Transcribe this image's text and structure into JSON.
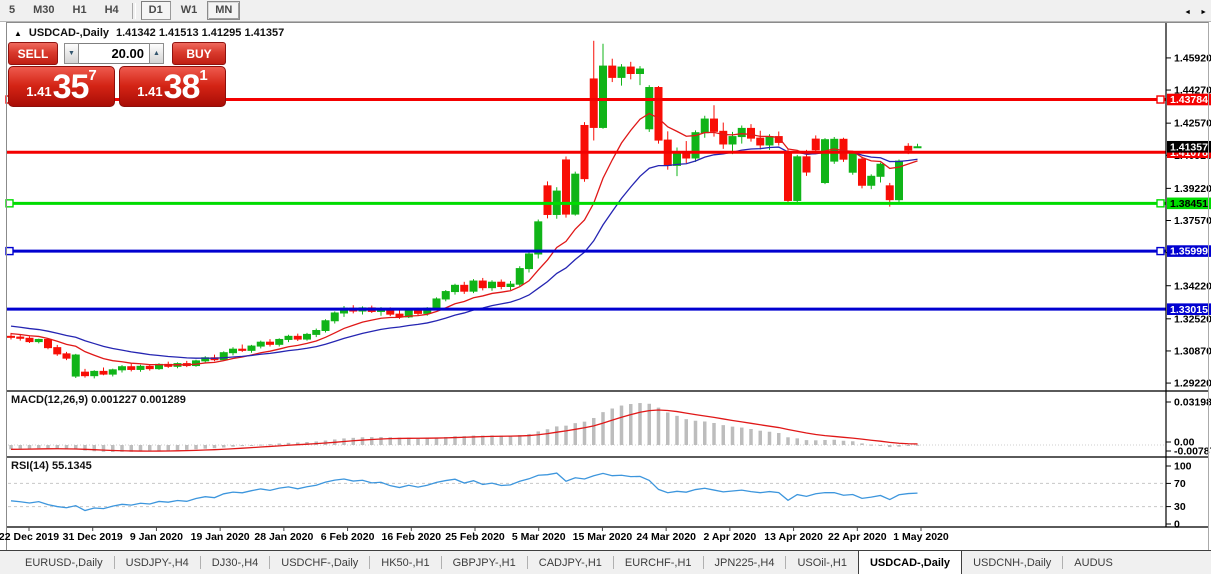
{
  "toolbar": {
    "periods": [
      "5",
      "M30",
      "H1",
      "H4",
      "D1",
      "W1",
      "MN"
    ],
    "pressed": "D1",
    "raised": "MN"
  },
  "window": {
    "title": "USDCAD-,Daily",
    "ohlc_text": "1.41342 1.41513 1.41295 1.41357"
  },
  "trade": {
    "sell_label": "SELL",
    "buy_label": "BUY",
    "volume": "20.00",
    "sell_price_small": "1.41",
    "sell_price_big": "35",
    "sell_price_sup": "7",
    "buy_price_small": "1.41",
    "buy_price_big": "38",
    "buy_price_sup": "1"
  },
  "icons": {
    "collapse_icon": "▲",
    "spin_down_icon": "▼",
    "spin_up_icon": "▲",
    "tabs_scroll_left_icon": "◄",
    "tabs_scroll_right_icon": "►"
  },
  "colors": {
    "bull": "#10b418",
    "bear": "#f80e06",
    "ma_fast": "#e01818",
    "ma_slow": "#2525b2",
    "level_red": "#f40000",
    "level_green": "#00dc00",
    "level_blue": "#0101d0",
    "macd_hist": "#bdbdbd",
    "macd_signal": "#e01818",
    "rsi_line": "#3d96dd",
    "grid_dash": "#c8c8c8",
    "axis_line": "#000000"
  },
  "chart_data": {
    "type": "candlestick",
    "symbol": "USDCAD-",
    "timeframe": "Daily",
    "current": {
      "open": 1.41342,
      "high": 1.41513,
      "low": 1.41295,
      "close": 1.41357
    },
    "x_labels": [
      "22 Dec 2019",
      "31 Dec 2019",
      "9 Jan 2020",
      "19 Jan 2020",
      "28 Jan 2020",
      "6 Feb 2020",
      "16 Feb 2020",
      "25 Feb 2020",
      "5 Mar 2020",
      "15 Mar 2020",
      "24 Mar 2020",
      "2 Apr 2020",
      "13 Apr 2020",
      "22 Apr 2020",
      "1 May 2020"
    ],
    "y_axis": {
      "tick_labels": [
        "1.45920",
        "1.44270",
        "1.42570",
        "1.40920",
        "1.39220",
        "1.37570",
        "1.35920",
        "1.34220",
        "1.32520",
        "1.30870",
        "1.29220"
      ],
      "top_price": 1.472,
      "bottom_price": 1.2887
    },
    "current_price_badge": {
      "label": "1.41357",
      "price": 1.41357,
      "bg": "#000000",
      "fg": "#ffffff"
    },
    "levels": [
      {
        "label": "1.43784",
        "price": 1.43784,
        "color": "#f40000",
        "fg": "#ffffff",
        "handles": [
          "left",
          "right"
        ]
      },
      {
        "label": "1.41078",
        "price": 1.41078,
        "color": "#f40000",
        "fg": "#ffffff",
        "handles": []
      },
      {
        "label": "1.38451",
        "price": 1.38451,
        "color": "#00dc00",
        "fg": "#000000",
        "handles": [
          "left",
          "right"
        ]
      },
      {
        "label": "1.35999",
        "price": 1.35999,
        "color": "#0101d0",
        "fg": "#ffffff",
        "handles": [
          "left",
          "right"
        ]
      },
      {
        "label": "1.33015",
        "price": 1.33015,
        "color": "#0101d0",
        "fg": "#ffffff",
        "handles": []
      }
    ],
    "candles": [
      [
        1.3162,
        1.318,
        1.3146,
        1.3158
      ],
      [
        1.3158,
        1.317,
        1.314,
        1.3152
      ],
      [
        1.3152,
        1.3161,
        1.3128,
        1.3135
      ],
      [
        1.3135,
        1.315,
        1.3126,
        1.3146
      ],
      [
        1.3146,
        1.3152,
        1.3096,
        1.3104
      ],
      [
        1.3104,
        1.3118,
        1.3062,
        1.3072
      ],
      [
        1.3072,
        1.3082,
        1.304,
        1.305
      ],
      [
        1.2958,
        1.3072,
        1.2948,
        1.3066
      ],
      [
        1.2978,
        1.2995,
        1.295,
        1.296
      ],
      [
        1.296,
        1.2988,
        1.2946,
        1.2982
      ],
      [
        1.2982,
        1.3002,
        1.2962,
        1.2968
      ],
      [
        1.2968,
        1.2996,
        1.2956,
        1.299
      ],
      [
        1.299,
        1.3014,
        1.2976,
        1.3006
      ],
      [
        1.3006,
        1.3022,
        1.2982,
        1.2992
      ],
      [
        1.2992,
        1.3016,
        1.298,
        1.3008
      ],
      [
        1.3008,
        1.302,
        1.2986,
        1.2996
      ],
      [
        1.2996,
        1.3024,
        1.299,
        1.3018
      ],
      [
        1.3018,
        1.3032,
        1.3,
        1.3008
      ],
      [
        1.3008,
        1.3028,
        1.2998,
        1.3022
      ],
      [
        1.3022,
        1.3036,
        1.3004,
        1.3012
      ],
      [
        1.3012,
        1.3042,
        1.3006,
        1.3036
      ],
      [
        1.3036,
        1.306,
        1.3028,
        1.3052
      ],
      [
        1.3052,
        1.3068,
        1.3034,
        1.3042
      ],
      [
        1.3042,
        1.3085,
        1.3038,
        1.3078
      ],
      [
        1.3078,
        1.3106,
        1.3064,
        1.3096
      ],
      [
        1.3096,
        1.312,
        1.3082,
        1.309
      ],
      [
        1.309,
        1.3118,
        1.3078,
        1.3112
      ],
      [
        1.3112,
        1.314,
        1.31,
        1.3132
      ],
      [
        1.3132,
        1.3148,
        1.311,
        1.3121
      ],
      [
        1.3121,
        1.3152,
        1.311,
        1.3146
      ],
      [
        1.3146,
        1.317,
        1.3132,
        1.3162
      ],
      [
        1.3162,
        1.3176,
        1.3138,
        1.3148
      ],
      [
        1.3148,
        1.318,
        1.314,
        1.3172
      ],
      [
        1.3172,
        1.3202,
        1.3158,
        1.3192
      ],
      [
        1.3192,
        1.325,
        1.3182,
        1.3242
      ],
      [
        1.3242,
        1.329,
        1.3228,
        1.3282
      ],
      [
        1.3282,
        1.3318,
        1.3262,
        1.3306
      ],
      [
        1.3306,
        1.3322,
        1.328,
        1.3292
      ],
      [
        1.3292,
        1.3316,
        1.3274,
        1.3308
      ],
      [
        1.3308,
        1.332,
        1.3282,
        1.329
      ],
      [
        1.329,
        1.3312,
        1.3268,
        1.33
      ],
      [
        1.33,
        1.3311,
        1.3266,
        1.3276
      ],
      [
        1.3276,
        1.3298,
        1.3252,
        1.3262
      ],
      [
        1.3262,
        1.33,
        1.3256,
        1.3294
      ],
      [
        1.3294,
        1.3308,
        1.327,
        1.328
      ],
      [
        1.328,
        1.3312,
        1.3268,
        1.3306
      ],
      [
        1.3306,
        1.3362,
        1.3296,
        1.3354
      ],
      [
        1.3354,
        1.34,
        1.3342,
        1.3392
      ],
      [
        1.3392,
        1.3432,
        1.3376,
        1.3424
      ],
      [
        1.3424,
        1.3442,
        1.338,
        1.3394
      ],
      [
        1.3394,
        1.3456,
        1.3384,
        1.3446
      ],
      [
        1.3446,
        1.3462,
        1.3398,
        1.3412
      ],
      [
        1.3412,
        1.345,
        1.3396,
        1.344
      ],
      [
        1.344,
        1.3454,
        1.3404,
        1.3418
      ],
      [
        1.3418,
        1.3446,
        1.34,
        1.343
      ],
      [
        1.343,
        1.3522,
        1.342,
        1.351
      ],
      [
        1.351,
        1.3602,
        1.349,
        1.3585
      ],
      [
        1.3585,
        1.3762,
        1.3562,
        1.375
      ],
      [
        1.3935,
        1.3958,
        1.3768,
        1.3788
      ],
      [
        1.3788,
        1.3928,
        1.3766,
        1.3908
      ],
      [
        1.4068,
        1.4086,
        1.3772,
        1.379
      ],
      [
        1.379,
        1.4008,
        1.3782,
        1.3995
      ],
      [
        1.4245,
        1.4262,
        1.3956,
        1.3972
      ],
      [
        1.4484,
        1.468,
        1.4168,
        1.4235
      ],
      [
        1.4235,
        1.4665,
        1.4228,
        1.455
      ],
      [
        1.455,
        1.4588,
        1.4468,
        1.4492
      ],
      [
        1.4492,
        1.456,
        1.445,
        1.4545
      ],
      [
        1.4545,
        1.4572,
        1.4482,
        1.4512
      ],
      [
        1.4512,
        1.455,
        1.4452,
        1.4535
      ],
      [
        1.4228,
        1.4452,
        1.4212,
        1.444
      ],
      [
        1.444,
        1.4448,
        1.4152,
        1.417
      ],
      [
        1.417,
        1.4215,
        1.4018,
        1.404
      ],
      [
        1.404,
        1.4132,
        1.3985,
        1.411
      ],
      [
        1.411,
        1.4165,
        1.4052,
        1.4078
      ],
      [
        1.4078,
        1.422,
        1.4058,
        1.4208
      ],
      [
        1.4208,
        1.4295,
        1.4182,
        1.4278
      ],
      [
        1.4278,
        1.4349,
        1.4188,
        1.4215
      ],
      [
        1.4215,
        1.426,
        1.4125,
        1.415
      ],
      [
        1.415,
        1.4212,
        1.4098,
        1.4188
      ],
      [
        1.4188,
        1.4245,
        1.4152,
        1.423
      ],
      [
        1.423,
        1.4252,
        1.4162,
        1.418
      ],
      [
        1.418,
        1.4218,
        1.4122,
        1.4145
      ],
      [
        1.4145,
        1.42,
        1.412,
        1.4188
      ],
      [
        1.4188,
        1.4214,
        1.4142,
        1.4158
      ],
      [
        1.4108,
        1.4124,
        1.3842,
        1.386
      ],
      [
        1.386,
        1.4094,
        1.385,
        1.4084
      ],
      [
        1.4084,
        1.412,
        1.3986,
        1.4006
      ],
      [
        1.4175,
        1.4194,
        1.4104,
        1.412
      ],
      [
        1.3952,
        1.418,
        1.3944,
        1.4172
      ],
      [
        1.4062,
        1.4186,
        1.4048,
        1.4174
      ],
      [
        1.4174,
        1.4182,
        1.4058,
        1.4072
      ],
      [
        1.4005,
        1.4112,
        1.3992,
        1.41
      ],
      [
        1.4072,
        1.4086,
        1.3922,
        1.3938
      ],
      [
        1.3938,
        1.3994,
        1.3918,
        1.3984
      ],
      [
        1.3984,
        1.4054,
        1.3952,
        1.4046
      ],
      [
        1.3935,
        1.395,
        1.3828,
        1.3864
      ],
      [
        1.3864,
        1.407,
        1.3846,
        1.4062
      ],
      [
        1.4138,
        1.4154,
        1.4098,
        1.4118
      ],
      [
        1.41342,
        1.41513,
        1.41295,
        1.41357
      ]
    ],
    "ma_fast_period": 10,
    "ma_slow_period": 21,
    "macd": {
      "label": "MACD(12,26,9) 0.001227 0.001289",
      "fast": 12,
      "slow": 26,
      "signal": 9,
      "current_macd": 0.001227,
      "current_signal": 0.001289,
      "axis_labels": [
        "0.031987",
        "0.00",
        "-0.007879"
      ],
      "scale_max": 0.031987,
      "scale_min": -0.007879
    },
    "rsi": {
      "label": "RSI(14) 55.1345",
      "period": 14,
      "current": 55.1345,
      "axis_labels": [
        "100",
        "70",
        "30",
        "0"
      ],
      "gridlines": [
        70,
        30
      ]
    }
  },
  "tabs": {
    "items": [
      {
        "label": "EURUSD-,Daily",
        "active": false
      },
      {
        "label": "USDJPY-,H4",
        "active": false
      },
      {
        "label": "DJ30-,H4",
        "active": false
      },
      {
        "label": "USDCHF-,Daily",
        "active": false
      },
      {
        "label": "HK50-,H1",
        "active": false
      },
      {
        "label": "GBPJPY-,H1",
        "active": false
      },
      {
        "label": "CADJPY-,H1",
        "active": false
      },
      {
        "label": "EURCHF-,H1",
        "active": false
      },
      {
        "label": "JPN225-,H4",
        "active": false
      },
      {
        "label": "USOil-,H1",
        "active": false
      },
      {
        "label": "USDCAD-,Daily",
        "active": true
      },
      {
        "label": "USDCNH-,Daily",
        "active": false
      },
      {
        "label": "AUDUS",
        "active": false
      }
    ]
  }
}
